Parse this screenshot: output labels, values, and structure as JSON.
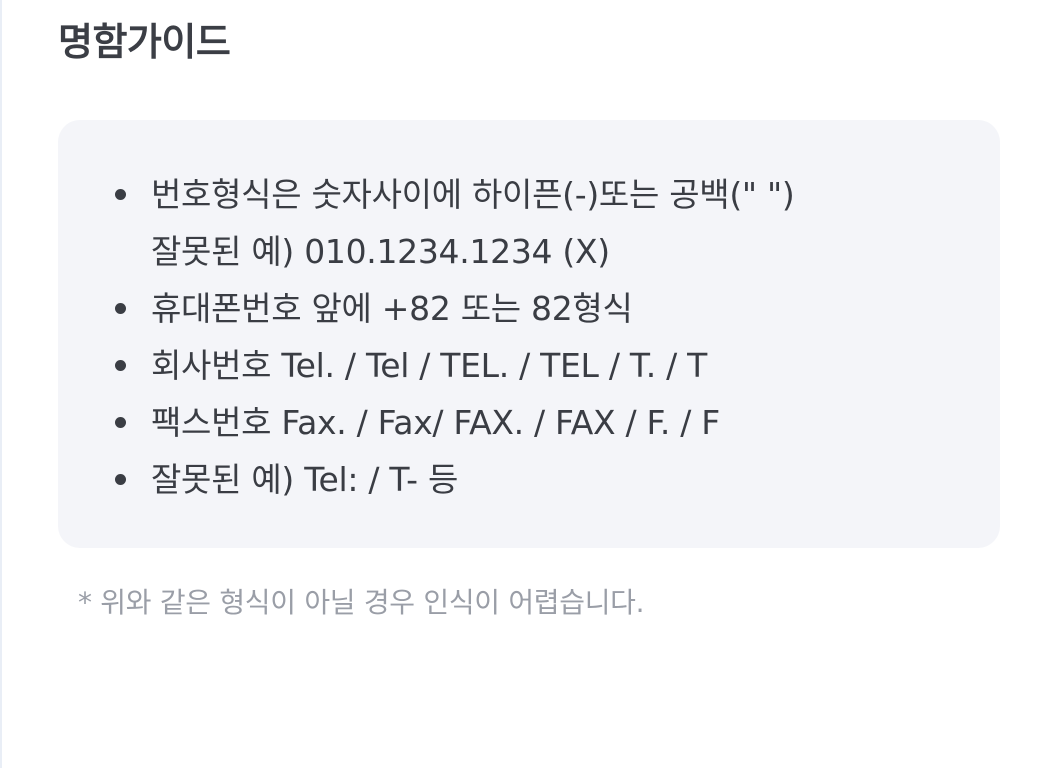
{
  "page": {
    "title": "명함가이드"
  },
  "guide": {
    "items": [
      {
        "lines": [
          "번호형식은 숫자사이에 하이픈(-)또는 공백(\" \")",
          "잘못된 예) 010.1234.1234 (X)"
        ]
      },
      {
        "lines": [
          "휴대폰번호 앞에 +82 또는 82형식"
        ]
      },
      {
        "lines": [
          "회사번호  Tel. / Tel / TEL. / TEL / T. / T"
        ]
      },
      {
        "lines": [
          "팩스번호 Fax. / Fax/ FAX. / FAX / F. / F"
        ]
      },
      {
        "lines": [
          "잘못된 예) Tel: / T- 등"
        ]
      }
    ]
  },
  "footnote": {
    "text": "* 위와 같은 형식이 아닐 경우 인식이 어렵습니다."
  },
  "colors": {
    "title": "#3b3e45",
    "box_background": "#f4f5f9",
    "body_text": "#3a3d44",
    "footnote_text": "#9a9ea7"
  }
}
